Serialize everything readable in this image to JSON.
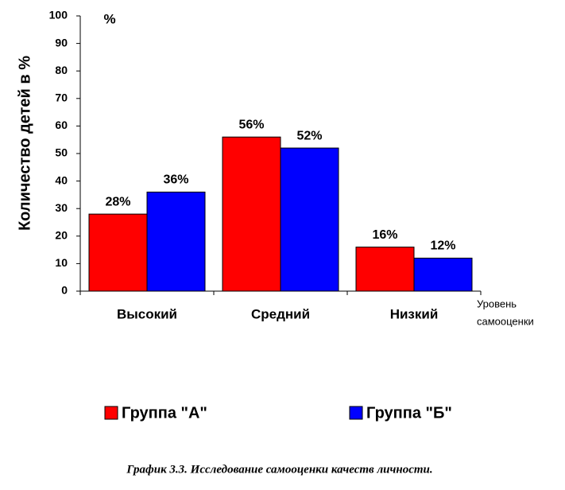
{
  "chart_data": {
    "type": "bar",
    "y_label": "Количество детей в %",
    "unit_label": "%",
    "x_label": [
      "Уровень",
      "самооценки"
    ],
    "caption": "График 3.3. Исследование самооценки качеств личности.",
    "categories": [
      "Высокий",
      "Средний",
      "Низкий"
    ],
    "series": [
      {
        "name": "Группа \"А\"",
        "color": "#ff0000",
        "values": [
          28,
          56,
          16
        ],
        "value_labels": [
          "28%",
          "56%",
          "16%"
        ]
      },
      {
        "name": "Группа \"Б\"",
        "color": "#0000ff",
        "values": [
          36,
          52,
          12
        ],
        "value_labels": [
          "36%",
          "52%",
          "12%"
        ]
      }
    ],
    "ylim": [
      0,
      100
    ],
    "yticks": [
      0,
      10,
      20,
      30,
      40,
      50,
      60,
      70,
      80,
      90,
      100
    ]
  }
}
